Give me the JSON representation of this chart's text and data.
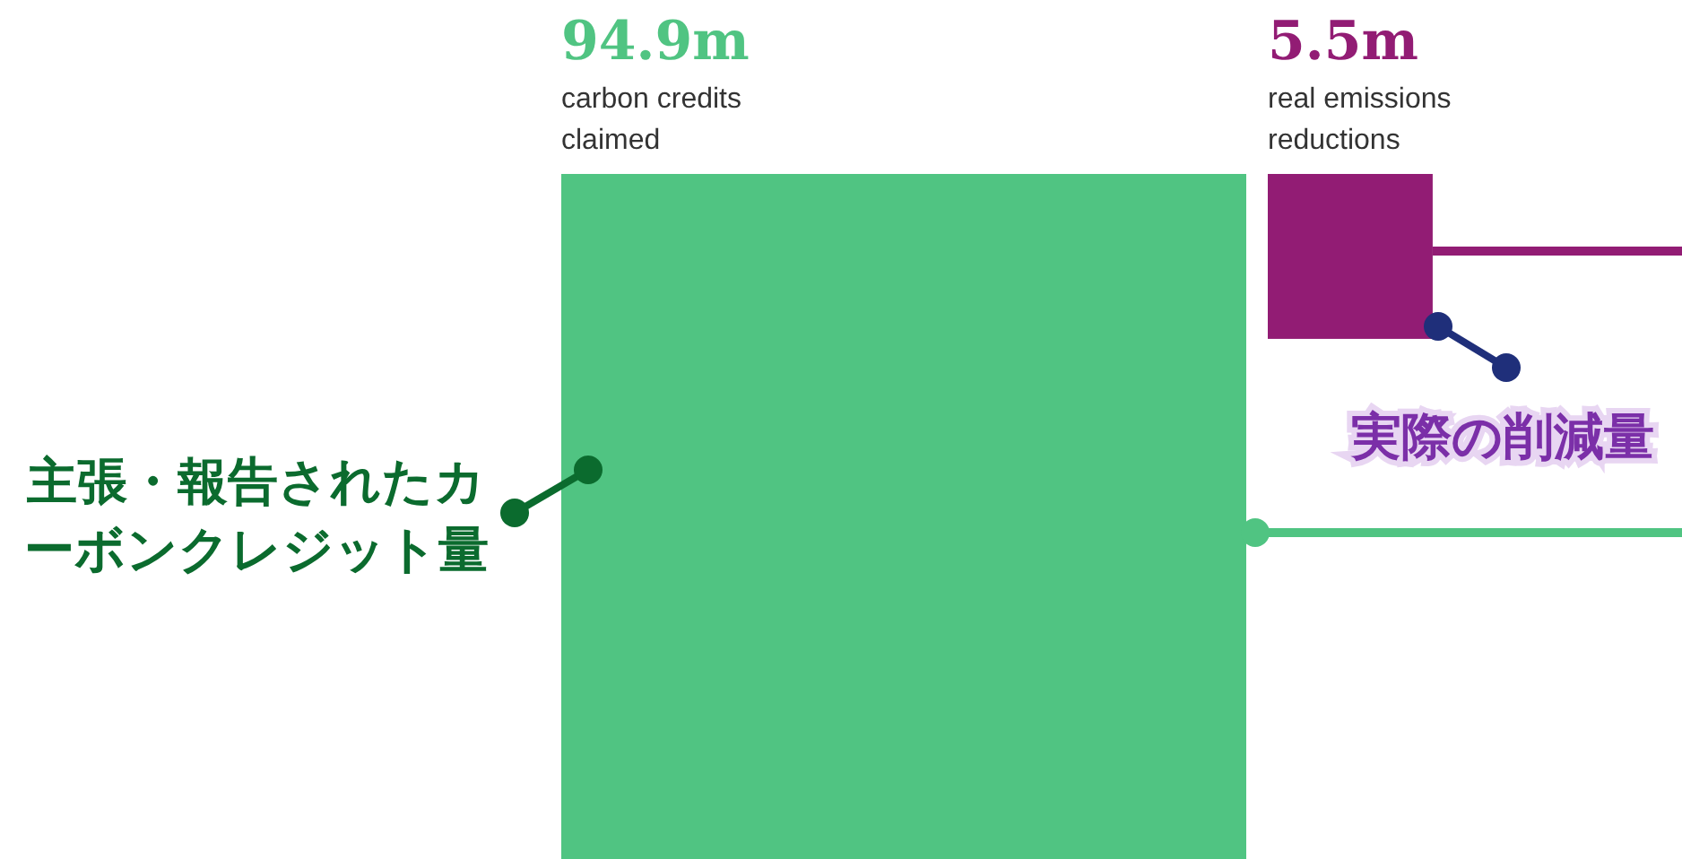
{
  "chart_data": {
    "type": "other",
    "categories": [
      "carbon credits claimed",
      "real emissions reductions"
    ],
    "values": [
      94.9,
      5.5
    ],
    "value_labels": [
      "94.9m",
      "5.5m"
    ],
    "colors": [
      "#50c482",
      "#921c74"
    ],
    "annotations": [
      "主張・報告されたカーボンクレジット量",
      "実際の削減量"
    ]
  }
}
